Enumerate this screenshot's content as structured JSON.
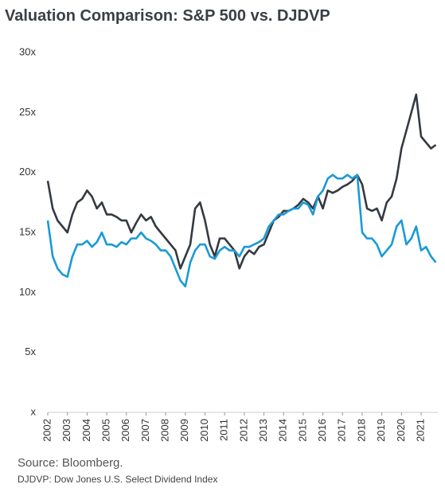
{
  "chart_data": {
    "type": "line",
    "title": "Valuation Comparison: S&P 500 vs. DJDVP",
    "source": "Source: Bloomberg.",
    "note": "DJDVP: Dow Jones U.S. Select Dividend Index",
    "x": [
      2002,
      2002.25,
      2002.5,
      2002.75,
      2003,
      2003.25,
      2003.5,
      2003.75,
      2004,
      2004.25,
      2004.5,
      2004.75,
      2005,
      2005.25,
      2005.5,
      2005.75,
      2006,
      2006.25,
      2006.5,
      2006.75,
      2007,
      2007.25,
      2007.5,
      2007.75,
      2008,
      2008.25,
      2008.5,
      2008.75,
      2009,
      2009.25,
      2009.5,
      2009.75,
      2010,
      2010.25,
      2010.5,
      2010.75,
      2011,
      2011.25,
      2011.5,
      2011.75,
      2012,
      2012.25,
      2012.5,
      2012.75,
      2013,
      2013.25,
      2013.5,
      2013.75,
      2014,
      2014.25,
      2014.5,
      2014.75,
      2015,
      2015.25,
      2015.5,
      2015.75,
      2016,
      2016.25,
      2016.5,
      2016.75,
      2017,
      2017.25,
      2017.5,
      2017.75,
      2018,
      2018.25,
      2018.5,
      2018.75,
      2019,
      2019.25,
      2019.5,
      2019.75,
      2020,
      2020.25,
      2020.5,
      2020.75,
      2021,
      2021.25,
      2021.5,
      2021.75
    ],
    "series": [
      {
        "color": "#343a40",
        "values": [
          19.3,
          17,
          16,
          15.5,
          15,
          16.5,
          17.5,
          17.8,
          18.5,
          18,
          17,
          17.5,
          16.5,
          16.5,
          16.3,
          16,
          16,
          15,
          15.8,
          16.5,
          16,
          16.3,
          15.5,
          15,
          14.5,
          14,
          13.5,
          12,
          13,
          14,
          17,
          17.5,
          16,
          14,
          13,
          14.5,
          14.5,
          14,
          13.5,
          12,
          13,
          13.5,
          13.2,
          13.8,
          14,
          15,
          16,
          16.3,
          16.8,
          16.8,
          17,
          17.3,
          17.8,
          17.5,
          17,
          18,
          17,
          18.5,
          18.3,
          18.5,
          18.8,
          19,
          19.3,
          19.8,
          19,
          17,
          16.8,
          17,
          16,
          17.5,
          18,
          19.5,
          22,
          23.5,
          25,
          26.5,
          23,
          22.5,
          22,
          22.3
        ]
      },
      {
        "color": "#1a9ad6",
        "values": [
          16,
          13,
          12,
          11.5,
          11.3,
          13,
          14,
          14,
          14.3,
          13.8,
          14.2,
          15,
          14,
          14,
          13.8,
          14.2,
          14,
          14.5,
          14.5,
          15,
          14.5,
          14.3,
          14,
          13.5,
          13.5,
          13,
          12,
          11,
          10.5,
          12.5,
          13.5,
          14,
          14,
          13,
          12.8,
          13.5,
          13.8,
          13.5,
          13.5,
          13,
          13.8,
          13.8,
          14,
          14.2,
          14.5,
          15.5,
          16,
          16.5,
          16.5,
          16.8,
          17,
          17,
          17.5,
          17.3,
          16.5,
          18,
          18.5,
          19.5,
          19.8,
          19.5,
          19.5,
          19.8,
          19.5,
          19.8,
          15,
          14.5,
          14.5,
          14,
          13,
          13.5,
          14,
          15.5,
          16,
          14,
          14.5,
          15.5,
          13.5,
          13.8,
          13,
          12.5
        ]
      }
    ],
    "xlim": [
      2002,
      2021.85
    ],
    "xticks": [
      2002,
      2003,
      2004,
      2005,
      2006,
      2007,
      2008,
      2009,
      2010,
      2011,
      2012,
      2013,
      2014,
      2015,
      2016,
      2017,
      2018,
      2019,
      2020,
      2021
    ],
    "ylim": [
      0,
      30
    ],
    "yticks": [
      {
        "value": 0,
        "label": "x"
      },
      {
        "value": 5,
        "label": "5x"
      },
      {
        "value": 10,
        "label": "10x"
      },
      {
        "value": 15,
        "label": "15x"
      },
      {
        "value": 20,
        "label": "20x"
      },
      {
        "value": 25,
        "label": "25x"
      },
      {
        "value": 30,
        "label": "30x"
      }
    ]
  }
}
